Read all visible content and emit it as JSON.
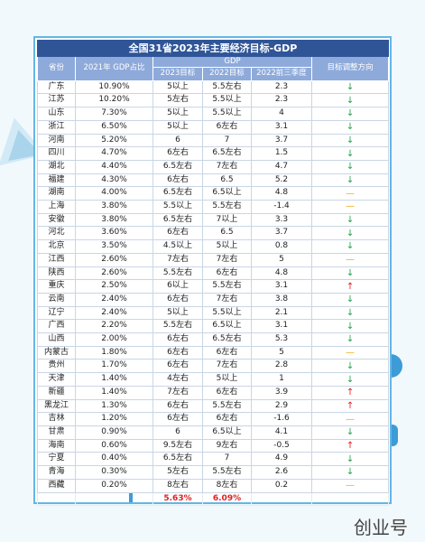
{
  "title": "全国31省2023年主要经济目标-GDP",
  "headers": {
    "province": "省份",
    "share": "2021年 GDP占比",
    "gdp": "GDP",
    "target2023": "2023目标",
    "target2022": "2022目标",
    "q3_2022": "2022前三季度",
    "direction": "目标调整方向"
  },
  "rows": [
    {
      "province": "广东",
      "share": "10.90%",
      "t2023": "5以上",
      "t2022": "5.5左右",
      "q3": "2.3",
      "dir": "down"
    },
    {
      "province": "江苏",
      "share": "10.20%",
      "t2023": "5左右",
      "t2022": "5.5以上",
      "q3": "2.3",
      "dir": "down"
    },
    {
      "province": "山东",
      "share": "7.30%",
      "t2023": "5以上",
      "t2022": "5.5以上",
      "q3": "4",
      "dir": "down"
    },
    {
      "province": "浙江",
      "share": "6.50%",
      "t2023": "5以上",
      "t2022": "6左右",
      "q3": "3.1",
      "dir": "down"
    },
    {
      "province": "河南",
      "share": "5.20%",
      "t2023": "6",
      "t2022": "7",
      "q3": "3.7",
      "dir": "down"
    },
    {
      "province": "四川",
      "share": "4.70%",
      "t2023": "6左右",
      "t2022": "6.5左右",
      "q3": "1.5",
      "dir": "down"
    },
    {
      "province": "湖北",
      "share": "4.40%",
      "t2023": "6.5左右",
      "t2022": "7左右",
      "q3": "4.7",
      "dir": "down"
    },
    {
      "province": "福建",
      "share": "4.30%",
      "t2023": "6左右",
      "t2022": "6.5",
      "q3": "5.2",
      "dir": "down"
    },
    {
      "province": "湖南",
      "share": "4.00%",
      "t2023": "6.5左右",
      "t2022": "6.5以上",
      "q3": "4.8",
      "dir": "flat"
    },
    {
      "province": "上海",
      "share": "3.80%",
      "t2023": "5.5以上",
      "t2022": "5.5左右",
      "q3": "-1.4",
      "dir": "flat"
    },
    {
      "province": "安徽",
      "share": "3.80%",
      "t2023": "6.5左右",
      "t2022": "7以上",
      "q3": "3.3",
      "dir": "down"
    },
    {
      "province": "河北",
      "share": "3.60%",
      "t2023": "6左右",
      "t2022": "6.5",
      "q3": "3.7",
      "dir": "down"
    },
    {
      "province": "北京",
      "share": "3.50%",
      "t2023": "4.5以上",
      "t2022": "5以上",
      "q3": "0.8",
      "dir": "down"
    },
    {
      "province": "江西",
      "share": "2.60%",
      "t2023": "7左右",
      "t2022": "7左右",
      "q3": "5",
      "dir": "flat"
    },
    {
      "province": "陕西",
      "share": "2.60%",
      "t2023": "5.5左右",
      "t2022": "6左右",
      "q3": "4.8",
      "dir": "down"
    },
    {
      "province": "重庆",
      "share": "2.50%",
      "t2023": "6以上",
      "t2022": "5.5左右",
      "q3": "3.1",
      "dir": "up"
    },
    {
      "province": "云南",
      "share": "2.40%",
      "t2023": "6左右",
      "t2022": "7左右",
      "q3": "3.8",
      "dir": "down"
    },
    {
      "province": "辽宁",
      "share": "2.40%",
      "t2023": "5以上",
      "t2022": "5.5以上",
      "q3": "2.1",
      "dir": "down"
    },
    {
      "province": "广西",
      "share": "2.20%",
      "t2023": "5.5左右",
      "t2022": "6.5以上",
      "q3": "3.1",
      "dir": "down"
    },
    {
      "province": "山西",
      "share": "2.00%",
      "t2023": "6左右",
      "t2022": "6.5左右",
      "q3": "5.3",
      "dir": "down"
    },
    {
      "province": "内蒙古",
      "share": "1.80%",
      "t2023": "6左右",
      "t2022": "6左右",
      "q3": "5",
      "dir": "flat"
    },
    {
      "province": "贵州",
      "share": "1.70%",
      "t2023": "6左右",
      "t2022": "7左右",
      "q3": "2.8",
      "dir": "down"
    },
    {
      "province": "天津",
      "share": "1.40%",
      "t2023": "4左右",
      "t2022": "5以上",
      "q3": "1",
      "dir": "down"
    },
    {
      "province": "新疆",
      "share": "1.40%",
      "t2023": "7左右",
      "t2022": "6左右",
      "q3": "3.9",
      "dir": "up"
    },
    {
      "province": "黑龙江",
      "share": "1.30%",
      "t2023": "6左右",
      "t2022": "5.5左右",
      "q3": "2.9",
      "dir": "up"
    },
    {
      "province": "吉林",
      "share": "1.20%",
      "t2023": "6左右",
      "t2022": "6左右",
      "q3": "-1.6",
      "dir": "flat"
    },
    {
      "province": "甘肃",
      "share": "0.90%",
      "t2023": "6",
      "t2022": "6.5以上",
      "q3": "4.1",
      "dir": "down"
    },
    {
      "province": "海南",
      "share": "0.60%",
      "t2023": "9.5左右",
      "t2022": "9左右",
      "q3": "-0.5",
      "dir": "up"
    },
    {
      "province": "宁夏",
      "share": "0.40%",
      "t2023": "6.5左右",
      "t2022": "7",
      "q3": "4.9",
      "dir": "down"
    },
    {
      "province": "青海",
      "share": "0.30%",
      "t2023": "5左右",
      "t2022": "5.5左右",
      "q3": "2.6",
      "dir": "down"
    },
    {
      "province": "西藏",
      "share": "0.20%",
      "t2023": "8左右",
      "t2022": "8左右",
      "q3": "0.2",
      "dir": "flat"
    }
  ],
  "summary": {
    "t2023": "5.63%",
    "t2022": "6.09%"
  },
  "arrows": {
    "up": "↑",
    "down": "↓",
    "flat": "—"
  },
  "watermark": "创业号"
}
